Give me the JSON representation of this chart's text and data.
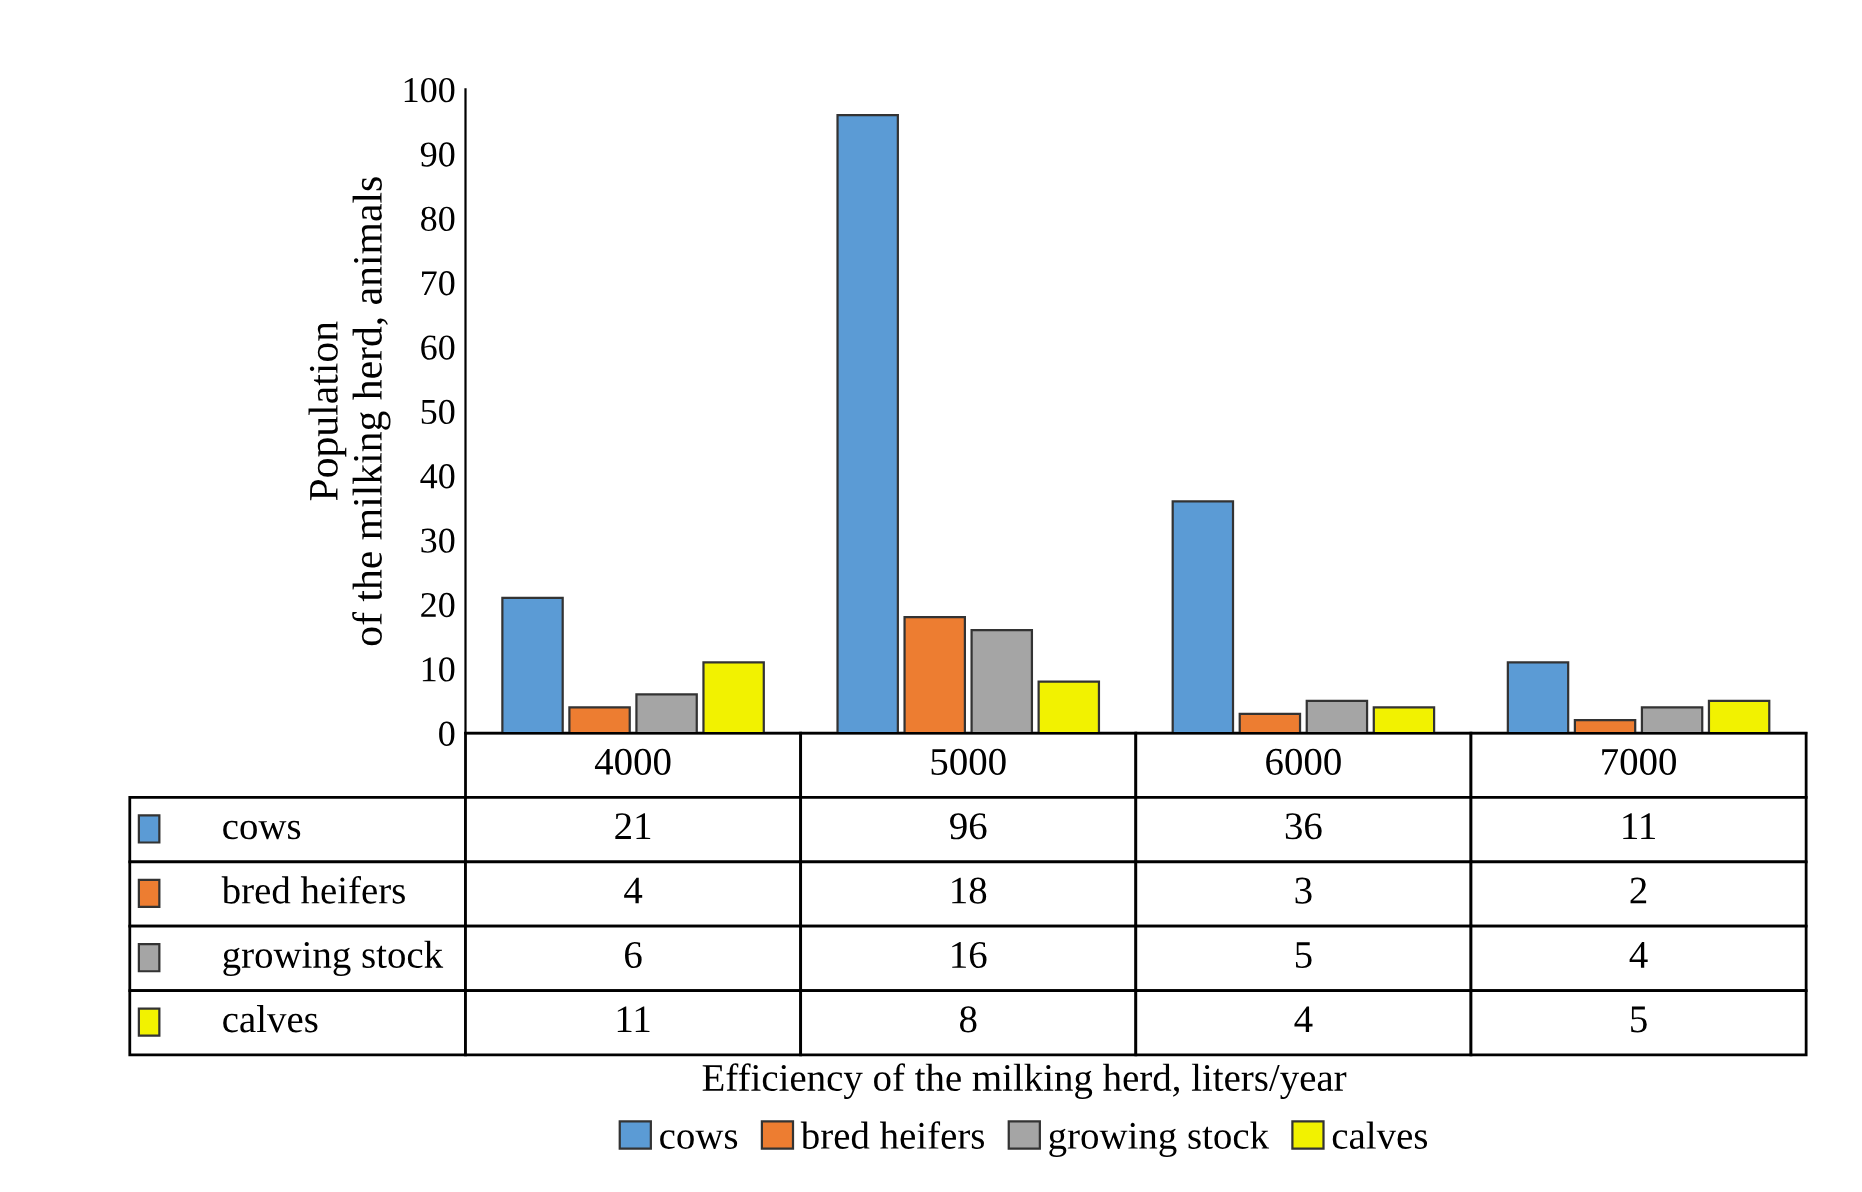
{
  "chart_data": {
    "type": "bar",
    "annotations": [
      "Efficiency of the milking herd, liters/year"
    ],
    "ylabel": "Population\nof the milking herd, animals",
    "categories": [
      "4000",
      "5000",
      "6000",
      "7000"
    ],
    "series": [
      {
        "name": "cows",
        "color": "#5b9bd5",
        "values": [
          21,
          96,
          36,
          11
        ]
      },
      {
        "name": "bred heifers",
        "color": "#ed7d31",
        "values": [
          4,
          18,
          3,
          2
        ]
      },
      {
        "name": "growing stock",
        "color": "#a5a5a5",
        "values": [
          6,
          16,
          5,
          4
        ]
      },
      {
        "name": "calves",
        "color": "#f2f200",
        "values": [
          11,
          8,
          4,
          5
        ]
      }
    ],
    "ylim": [
      0,
      100
    ],
    "yticks": [
      0,
      10,
      20,
      30,
      40,
      50,
      60,
      70,
      80,
      90,
      100
    ],
    "grid": false,
    "legend": "bottom",
    "data_labels": true
  }
}
